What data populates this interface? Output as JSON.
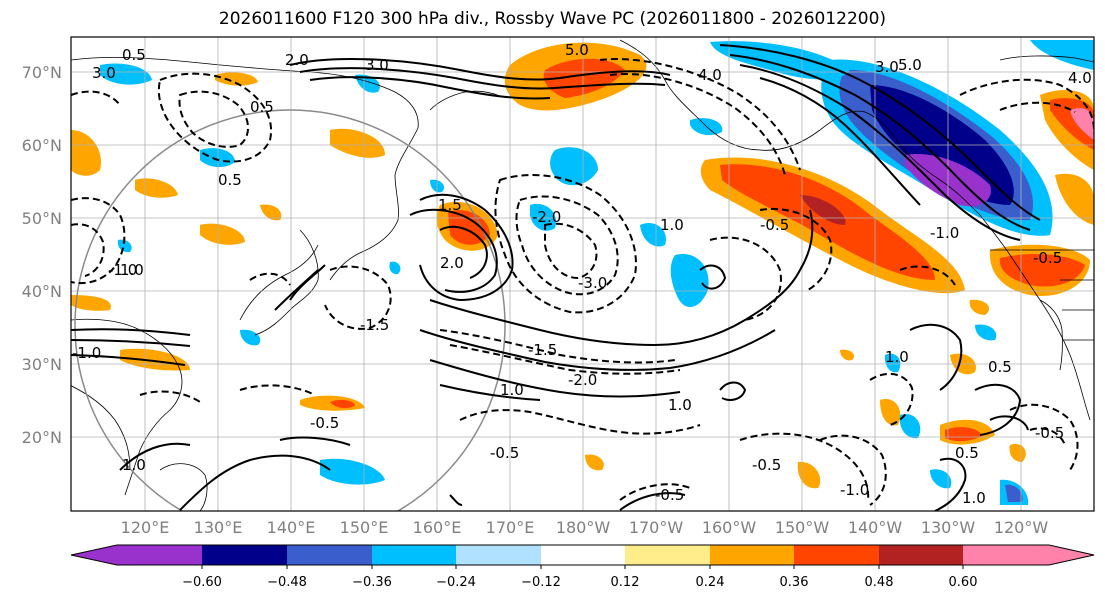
{
  "title": "2026011600 F120 300 hPa div., Rossby Wave PC (2026011800 - 2026012200)",
  "lat_labels": [
    "70°N",
    "60°N",
    "50°N",
    "40°N",
    "30°N",
    "20°N"
  ],
  "lon_labels": [
    "120°E",
    "130°E",
    "140°E",
    "150°E",
    "160°E",
    "170°E",
    "180°W",
    "170°W",
    "160°W",
    "150°W",
    "140°W",
    "130°W",
    "120°W"
  ],
  "colorbar": {
    "colors": [
      "#9932cc",
      "#00008b",
      "#3a5fcd",
      "#00bfff",
      "#b0e2ff",
      "#ffffff",
      "#ffec8b",
      "#ffa500",
      "#ff4500",
      "#b22222",
      "#ff82ab"
    ],
    "tick_labels": [
      "−0.60",
      "−0.48",
      "−0.36",
      "−0.24",
      "−0.12",
      "0.12",
      "0.24",
      "0.36",
      "0.48",
      "0.60"
    ]
  },
  "contour_labels": [
    "5.0",
    "4.0",
    "3.0",
    "2.0",
    "1.5",
    "1.0",
    "0.5",
    "-0.5",
    "-1.0",
    "-1.5",
    "-2.0",
    "-3.0"
  ],
  "palette": {
    "neg_strong": "#9932cc",
    "neg_dark": "#00008b",
    "neg_mid": "#3a5fcd",
    "neg_light": "#00bfff",
    "neg_pale": "#b0e2ff",
    "pos_pale": "#ffec8b",
    "pos_light": "#ffa500",
    "pos_mid": "#ff4500",
    "pos_dark": "#b22222",
    "pos_strong": "#ff82ab"
  }
}
